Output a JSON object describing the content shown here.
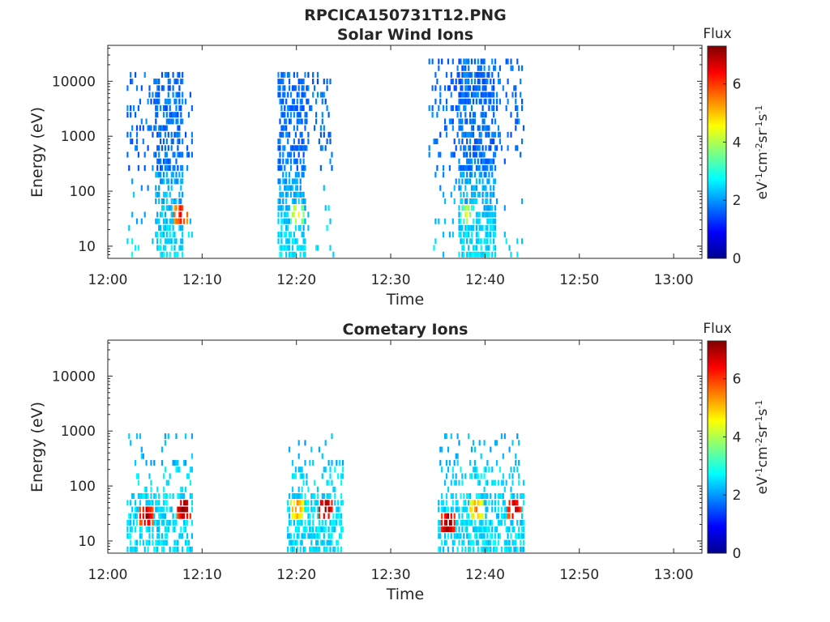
{
  "figure": {
    "title": "RPCICA150731T12.PNG"
  },
  "colormap": {
    "name": "jet",
    "stops": [
      "#00008f",
      "#0000ff",
      "#00ffff",
      "#ffff00",
      "#ff0000",
      "#800000"
    ]
  },
  "chart_data": [
    {
      "type": "heatmap",
      "title": "Solar Wind Ions",
      "xlabel": "Time",
      "ylabel": "Energy (eV)",
      "yscale": "log",
      "xlim": [
        "12:00",
        "13:03"
      ],
      "ylim": [
        6,
        45000
      ],
      "x_ticks": [
        "12:00",
        "12:10",
        "12:20",
        "12:30",
        "12:40",
        "12:50",
        "13:00"
      ],
      "y_ticks": [
        "10",
        "100",
        "1000",
        "10000"
      ],
      "colorbar": {
        "label": "Flux",
        "units": "eV-1cm-2sr-1s-1",
        "range": [
          0,
          7.3
        ],
        "ticks": [
          "0",
          "2",
          "4",
          "6"
        ]
      },
      "bursts": [
        {
          "time_range": [
            "12:02",
            "12:09"
          ],
          "core_range": [
            "12:05",
            "12:08"
          ],
          "energy_range_eV": [
            6,
            15000
          ],
          "flux_peak": {
            "time": "12:07:40",
            "energy_eV": 38,
            "value": 6.5
          }
        },
        {
          "time_range": [
            "12:18",
            "12:24"
          ],
          "core_range": [
            "12:18",
            "12:21"
          ],
          "energy_range_eV": [
            6,
            13000
          ],
          "flux_peak": {
            "time": "12:20",
            "energy_eV": 38,
            "value": 4.6
          }
        },
        {
          "time_range": [
            "12:34",
            "12:44"
          ],
          "core_range": [
            "12:37",
            "12:41"
          ],
          "energy_range_eV": [
            6,
            28000
          ],
          "flux_peak": {
            "time": "12:38",
            "energy_eV": 38,
            "value": 4.2
          }
        }
      ]
    },
    {
      "type": "heatmap",
      "title": "Cometary Ions",
      "xlabel": "Time",
      "ylabel": "Energy (eV)",
      "yscale": "log",
      "xlim": [
        "12:00",
        "13:03"
      ],
      "ylim": [
        6,
        45000
      ],
      "x_ticks": [
        "12:00",
        "12:10",
        "12:20",
        "12:30",
        "12:40",
        "12:50",
        "13:00"
      ],
      "y_ticks": [
        "10",
        "100",
        "1000",
        "10000"
      ],
      "colorbar": {
        "label": "Flux",
        "units": "eV-1cm-2sr-1s-1",
        "range": [
          0,
          7.3
        ],
        "ticks": [
          "0",
          "2",
          "4",
          "6"
        ]
      },
      "bursts": [
        {
          "time_range": [
            "12:02",
            "12:09"
          ],
          "energy_range_eV": [
            6,
            900
          ],
          "flux_peaks": [
            {
              "time": "12:04",
              "energy_eV": 28,
              "value": 7.0
            },
            {
              "time": "12:08",
              "energy_eV": 38,
              "value": 7.3
            }
          ]
        },
        {
          "time_range": [
            "12:19",
            "12:25"
          ],
          "energy_range_eV": [
            6,
            900
          ],
          "flux_peaks": [
            {
              "time": "12:20",
              "energy_eV": 38,
              "value": 5.5
            },
            {
              "time": "12:23",
              "energy_eV": 38,
              "value": 7.3
            }
          ]
        },
        {
          "time_range": [
            "12:35",
            "12:44"
          ],
          "energy_range_eV": [
            6,
            1000
          ],
          "flux_peaks": [
            {
              "time": "12:36",
              "energy_eV": 20,
              "value": 7.3
            },
            {
              "time": "12:39",
              "energy_eV": 38,
              "value": 5.5
            },
            {
              "time": "12:43",
              "energy_eV": 38,
              "value": 7.0
            }
          ]
        }
      ]
    }
  ]
}
